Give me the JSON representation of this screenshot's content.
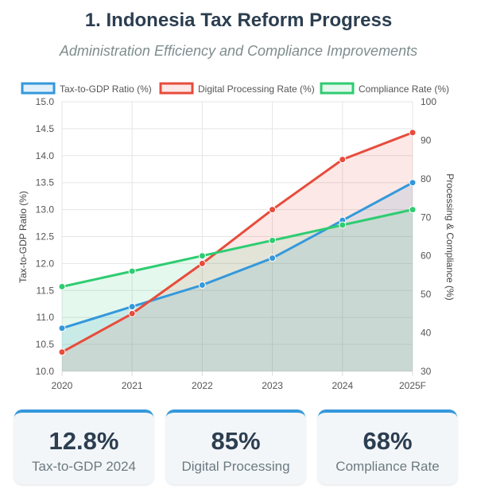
{
  "header": {
    "title": "1. Indonesia Tax Reform Progress",
    "subtitle": "Administration Efficiency and Compliance Improvements"
  },
  "chart_data": {
    "type": "line",
    "x": [
      "2020",
      "2021",
      "2022",
      "2023",
      "2024",
      "2025F"
    ],
    "series": [
      {
        "name": "Tax-to-GDP Ratio (%)",
        "axis": "left",
        "color": "#3498db",
        "fill": "rgba(52,152,219,0.15)",
        "values": [
          10.8,
          11.2,
          11.6,
          12.1,
          12.8,
          13.5
        ]
      },
      {
        "name": "Digital Processing Rate (%)",
        "axis": "right",
        "color": "#e74c3c",
        "fill": "rgba(231,76,60,0.13)",
        "values": [
          35,
          45,
          58,
          72,
          85,
          92
        ]
      },
      {
        "name": "Compliance Rate (%)",
        "axis": "right",
        "color": "#2ecc71",
        "fill": "rgba(46,204,113,0.13)",
        "values": [
          52,
          56,
          60,
          64,
          68,
          72
        ]
      }
    ],
    "y_left": {
      "label": "Tax-to-GDP Ratio (%)",
      "range": [
        10.0,
        15.0
      ],
      "ticks": [
        "10.0",
        "10.5",
        "11.0",
        "11.5",
        "12.0",
        "12.5",
        "13.0",
        "13.5",
        "14.0",
        "14.5",
        "15.0"
      ]
    },
    "y_right": {
      "label": "Processing & Compliance (%)",
      "range": [
        30,
        100
      ],
      "ticks": [
        "30",
        "40",
        "50",
        "60",
        "70",
        "80",
        "90",
        "100"
      ]
    },
    "grid": true,
    "legend": "top"
  },
  "cards": [
    {
      "value": "12.8%",
      "label": "Tax-to-GDP 2024"
    },
    {
      "value": "85%",
      "label": "Digital Processing"
    },
    {
      "value": "68%",
      "label": "Compliance Rate"
    }
  ]
}
